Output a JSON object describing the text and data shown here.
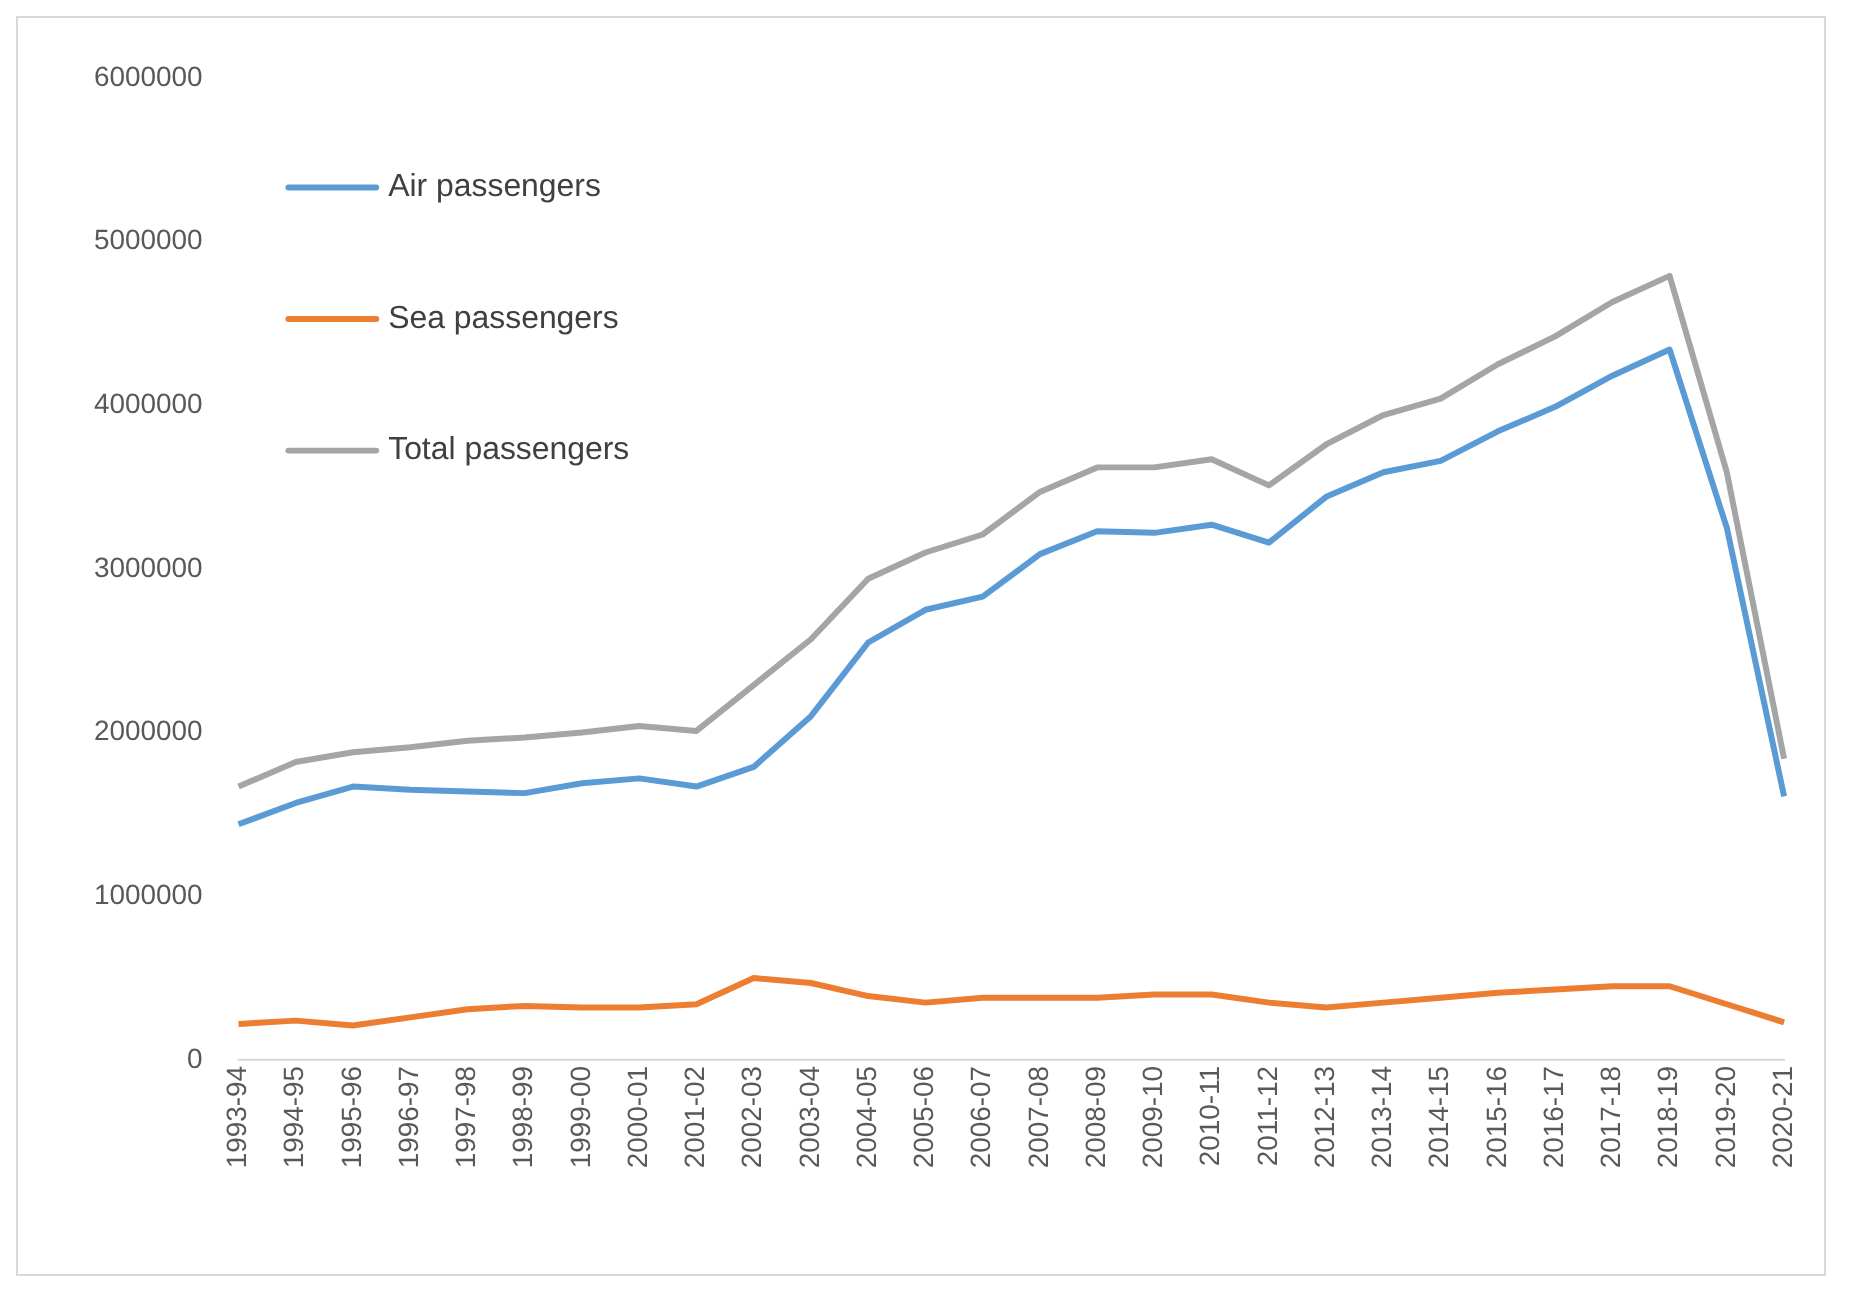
{
  "chart_data": {
    "type": "line",
    "categories": [
      "1993-94",
      "1994-95",
      "1995-96",
      "1996-97",
      "1997-98",
      "1998-99",
      "1999-00",
      "2000-01",
      "2001-02",
      "2002-03",
      "2003-04",
      "2004-05",
      "2005-06",
      "2006-07",
      "2007-08",
      "2008-09",
      "2009-10",
      "2010-11",
      "2011-12",
      "2012-13",
      "2013-14",
      "2014-15",
      "2015-16",
      "2016-17",
      "2017-18",
      "2018-19",
      "2019-20",
      "2020-21"
    ],
    "series": [
      {
        "name": "Air passengers",
        "color": "#5b9bd5",
        "values": [
          1440000,
          1570000,
          1670000,
          1650000,
          1640000,
          1630000,
          1690000,
          1720000,
          1670000,
          1790000,
          2100000,
          2550000,
          2750000,
          2830000,
          3090000,
          3230000,
          3220000,
          3270000,
          3160000,
          3440000,
          3590000,
          3660000,
          3840000,
          3990000,
          4180000,
          4340000,
          3250000,
          1610000
        ]
      },
      {
        "name": "Sea passengers",
        "color": "#ed7d31",
        "values": [
          220000,
          240000,
          210000,
          260000,
          310000,
          330000,
          320000,
          320000,
          340000,
          500000,
          470000,
          390000,
          350000,
          380000,
          380000,
          380000,
          400000,
          400000,
          350000,
          320000,
          350000,
          380000,
          410000,
          430000,
          450000,
          450000,
          340000,
          230000
        ]
      },
      {
        "name": "Total passengers",
        "color": "#a5a5a5",
        "values": [
          1670000,
          1820000,
          1880000,
          1910000,
          1950000,
          1970000,
          2000000,
          2040000,
          2010000,
          2290000,
          2570000,
          2940000,
          3100000,
          3210000,
          3470000,
          3620000,
          3620000,
          3670000,
          3510000,
          3760000,
          3940000,
          4040000,
          4250000,
          4420000,
          4630000,
          4790000,
          3590000,
          1840000
        ]
      }
    ],
    "ylim": [
      0,
      6000000
    ],
    "yticks": [
      0,
      1000000,
      2000000,
      3000000,
      4000000,
      5000000,
      6000000
    ],
    "legend": "top left",
    "grid": false,
    "marker": "none",
    "line_style": "solid"
  }
}
